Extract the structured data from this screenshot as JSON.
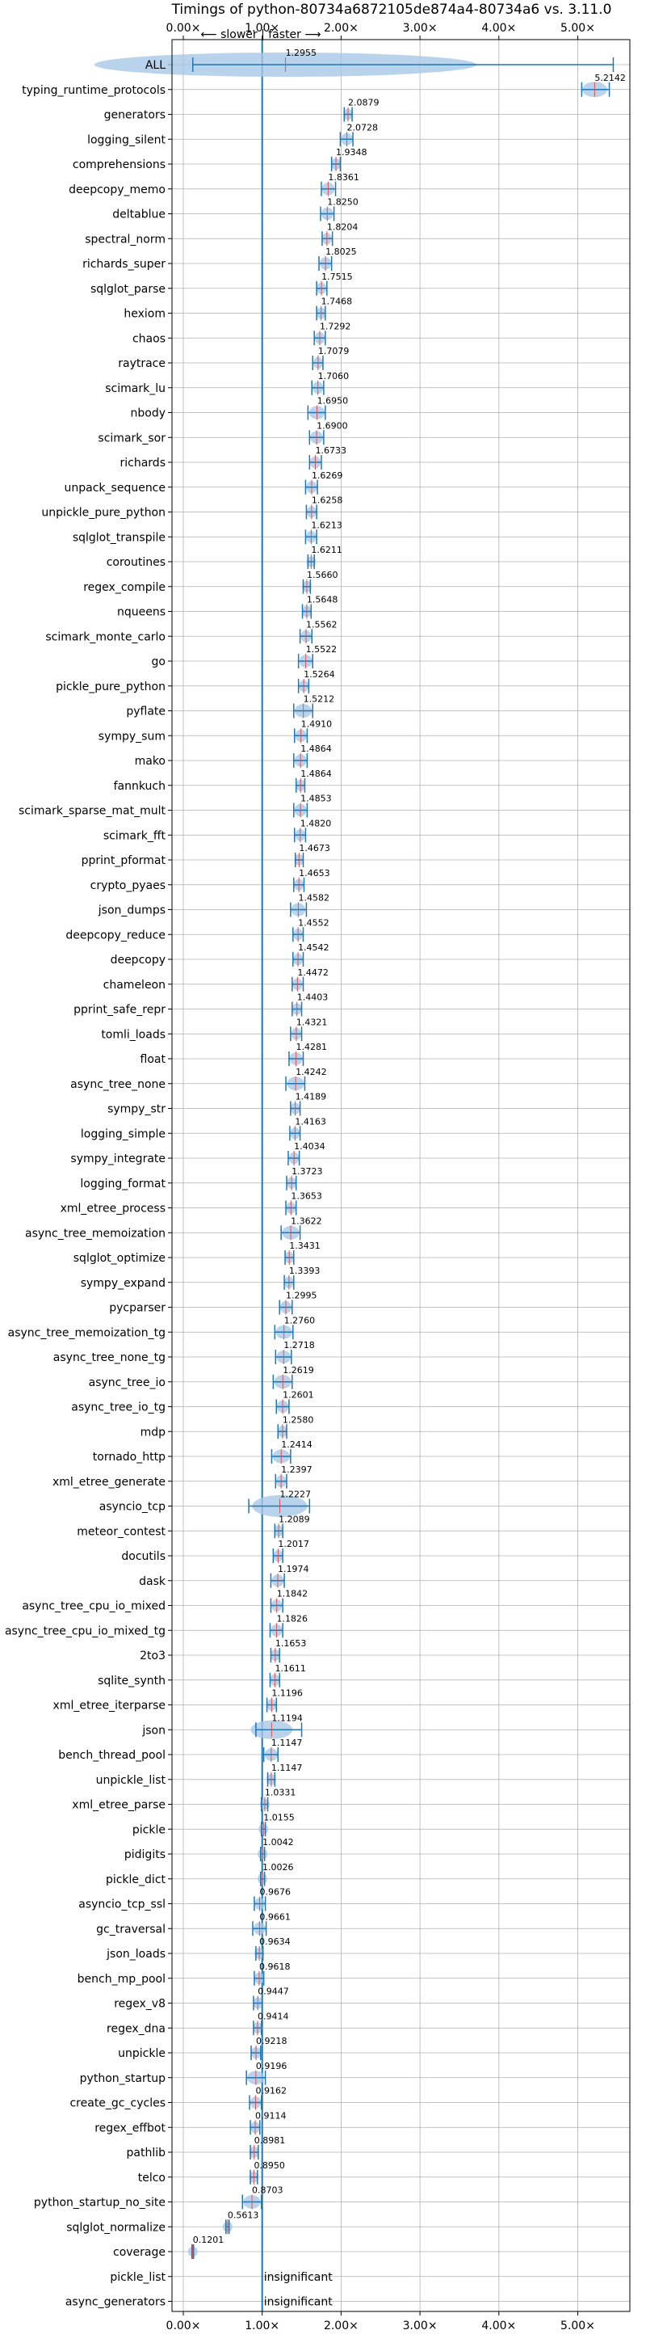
{
  "chart_data": {
    "type": "scatter",
    "title": "Timings of python-80734a6872105de874a4-80734a6 vs. 3.11.0",
    "direction_label": "⟵ slower | faster ⟶",
    "xlabel": "",
    "ylabel": "",
    "xlim": [
      0,
      5.5
    ],
    "x_ticks": [
      0,
      1,
      2,
      3,
      4,
      5
    ],
    "x_tick_labels": [
      "0.00×",
      "1.00×",
      "2.00×",
      "3.00×",
      "4.00×",
      "5.00×"
    ],
    "reference_line": 1.0,
    "grid": true,
    "benchmarks": [
      {
        "name": "ALL",
        "value": 1.2955,
        "label": "1.2955",
        "lo": 0.12,
        "hi": 5.45
      },
      {
        "name": "typing_runtime_protocols",
        "value": 5.2142,
        "label": "5.2142",
        "lo": 5.05,
        "hi": 5.4
      },
      {
        "name": "generators",
        "value": 2.0879,
        "label": "2.0879",
        "lo": 2.04,
        "hi": 2.14
      },
      {
        "name": "logging_silent",
        "value": 2.0728,
        "label": "2.0728",
        "lo": 1.99,
        "hi": 2.15
      },
      {
        "name": "comprehensions",
        "value": 1.9348,
        "label": "1.9348",
        "lo": 1.88,
        "hi": 1.99
      },
      {
        "name": "deepcopy_memo",
        "value": 1.8361,
        "label": "1.8361",
        "lo": 1.75,
        "hi": 1.93
      },
      {
        "name": "deltablue",
        "value": 1.825,
        "label": "1.8250",
        "lo": 1.74,
        "hi": 1.91
      },
      {
        "name": "spectral_norm",
        "value": 1.8204,
        "label": "1.8204",
        "lo": 1.76,
        "hi": 1.89
      },
      {
        "name": "richards_super",
        "value": 1.8025,
        "label": "1.8025",
        "lo": 1.72,
        "hi": 1.88
      },
      {
        "name": "sqlglot_parse",
        "value": 1.7515,
        "label": "1.7515",
        "lo": 1.69,
        "hi": 1.82
      },
      {
        "name": "hexiom",
        "value": 1.7468,
        "label": "1.7468",
        "lo": 1.69,
        "hi": 1.8
      },
      {
        "name": "chaos",
        "value": 1.7292,
        "label": "1.7292",
        "lo": 1.66,
        "hi": 1.8
      },
      {
        "name": "raytrace",
        "value": 1.7079,
        "label": "1.7079",
        "lo": 1.64,
        "hi": 1.77
      },
      {
        "name": "scimark_lu",
        "value": 1.706,
        "label": "1.7060",
        "lo": 1.63,
        "hi": 1.78
      },
      {
        "name": "nbody",
        "value": 1.695,
        "label": "1.6950",
        "lo": 1.58,
        "hi": 1.8
      },
      {
        "name": "scimark_sor",
        "value": 1.69,
        "label": "1.6900",
        "lo": 1.6,
        "hi": 1.78
      },
      {
        "name": "richards",
        "value": 1.6733,
        "label": "1.6733",
        "lo": 1.6,
        "hi": 1.75
      },
      {
        "name": "unpack_sequence",
        "value": 1.6269,
        "label": "1.6269",
        "lo": 1.55,
        "hi": 1.7
      },
      {
        "name": "unpickle_pure_python",
        "value": 1.6258,
        "label": "1.6258",
        "lo": 1.56,
        "hi": 1.69
      },
      {
        "name": "sqlglot_transpile",
        "value": 1.6213,
        "label": "1.6213",
        "lo": 1.55,
        "hi": 1.69
      },
      {
        "name": "coroutines",
        "value": 1.6211,
        "label": "1.6211",
        "lo": 1.58,
        "hi": 1.66
      },
      {
        "name": "regex_compile",
        "value": 1.566,
        "label": "1.5660",
        "lo": 1.52,
        "hi": 1.61
      },
      {
        "name": "nqueens",
        "value": 1.5648,
        "label": "1.5648",
        "lo": 1.51,
        "hi": 1.62
      },
      {
        "name": "scimark_monte_carlo",
        "value": 1.5562,
        "label": "1.5562",
        "lo": 1.48,
        "hi": 1.63
      },
      {
        "name": "go",
        "value": 1.5522,
        "label": "1.5522",
        "lo": 1.46,
        "hi": 1.64
      },
      {
        "name": "pickle_pure_python",
        "value": 1.5264,
        "label": "1.5264",
        "lo": 1.46,
        "hi": 1.59
      },
      {
        "name": "pyflate",
        "value": 1.5212,
        "label": "1.5212",
        "lo": 1.4,
        "hi": 1.64
      },
      {
        "name": "sympy_sum",
        "value": 1.491,
        "label": "1.4910",
        "lo": 1.41,
        "hi": 1.57
      },
      {
        "name": "mako",
        "value": 1.4864,
        "label": "1.4864",
        "lo": 1.4,
        "hi": 1.57
      },
      {
        "name": "fannkuch",
        "value": 1.4864,
        "label": "1.4864",
        "lo": 1.43,
        "hi": 1.54
      },
      {
        "name": "scimark_sparse_mat_mult",
        "value": 1.4853,
        "label": "1.4853",
        "lo": 1.4,
        "hi": 1.57
      },
      {
        "name": "scimark_fft",
        "value": 1.482,
        "label": "1.4820",
        "lo": 1.41,
        "hi": 1.55
      },
      {
        "name": "pprint_pformat",
        "value": 1.4673,
        "label": "1.4673",
        "lo": 1.42,
        "hi": 1.52
      },
      {
        "name": "crypto_pyaes",
        "value": 1.4653,
        "label": "1.4653",
        "lo": 1.4,
        "hi": 1.53
      },
      {
        "name": "json_dumps",
        "value": 1.4582,
        "label": "1.4582",
        "lo": 1.36,
        "hi": 1.56
      },
      {
        "name": "deepcopy_reduce",
        "value": 1.4552,
        "label": "1.4552",
        "lo": 1.39,
        "hi": 1.52
      },
      {
        "name": "deepcopy",
        "value": 1.4542,
        "label": "1.4542",
        "lo": 1.39,
        "hi": 1.52
      },
      {
        "name": "chameleon",
        "value": 1.4472,
        "label": "1.4472",
        "lo": 1.38,
        "hi": 1.52
      },
      {
        "name": "pprint_safe_repr",
        "value": 1.4403,
        "label": "1.4403",
        "lo": 1.38,
        "hi": 1.5
      },
      {
        "name": "tomli_loads",
        "value": 1.4321,
        "label": "1.4321",
        "lo": 1.36,
        "hi": 1.5
      },
      {
        "name": "float",
        "value": 1.4281,
        "label": "1.4281",
        "lo": 1.34,
        "hi": 1.52
      },
      {
        "name": "async_tree_none",
        "value": 1.4242,
        "label": "1.4242",
        "lo": 1.3,
        "hi": 1.54
      },
      {
        "name": "sympy_str",
        "value": 1.4189,
        "label": "1.4189",
        "lo": 1.36,
        "hi": 1.48
      },
      {
        "name": "logging_simple",
        "value": 1.4163,
        "label": "1.4163",
        "lo": 1.35,
        "hi": 1.48
      },
      {
        "name": "sympy_integrate",
        "value": 1.4034,
        "label": "1.4034",
        "lo": 1.33,
        "hi": 1.47
      },
      {
        "name": "logging_format",
        "value": 1.3723,
        "label": "1.3723",
        "lo": 1.31,
        "hi": 1.43
      },
      {
        "name": "xml_etree_process",
        "value": 1.3653,
        "label": "1.3653",
        "lo": 1.3,
        "hi": 1.43
      },
      {
        "name": "async_tree_memoization",
        "value": 1.3622,
        "label": "1.3622",
        "lo": 1.24,
        "hi": 1.48
      },
      {
        "name": "sqlglot_optimize",
        "value": 1.3431,
        "label": "1.3431",
        "lo": 1.29,
        "hi": 1.4
      },
      {
        "name": "sympy_expand",
        "value": 1.3393,
        "label": "1.3393",
        "lo": 1.28,
        "hi": 1.4
      },
      {
        "name": "pycparser",
        "value": 1.2995,
        "label": "1.2995",
        "lo": 1.22,
        "hi": 1.38
      },
      {
        "name": "async_tree_memoization_tg",
        "value": 1.276,
        "label": "1.2760",
        "lo": 1.16,
        "hi": 1.39
      },
      {
        "name": "async_tree_none_tg",
        "value": 1.2718,
        "label": "1.2718",
        "lo": 1.17,
        "hi": 1.37
      },
      {
        "name": "async_tree_io",
        "value": 1.2619,
        "label": "1.2619",
        "lo": 1.14,
        "hi": 1.38
      },
      {
        "name": "async_tree_io_tg",
        "value": 1.2601,
        "label": "1.2601",
        "lo": 1.18,
        "hi": 1.34
      },
      {
        "name": "mdp",
        "value": 1.258,
        "label": "1.2580",
        "lo": 1.2,
        "hi": 1.31
      },
      {
        "name": "tornado_http",
        "value": 1.2414,
        "label": "1.2414",
        "lo": 1.12,
        "hi": 1.36
      },
      {
        "name": "xml_etree_generate",
        "value": 1.2397,
        "label": "1.2397",
        "lo": 1.17,
        "hi": 1.31
      },
      {
        "name": "asyncio_tcp",
        "value": 1.2227,
        "label": "1.2227",
        "lo": 0.83,
        "hi": 1.6
      },
      {
        "name": "meteor_contest",
        "value": 1.2089,
        "label": "1.2089",
        "lo": 1.16,
        "hi": 1.26
      },
      {
        "name": "docutils",
        "value": 1.2017,
        "label": "1.2017",
        "lo": 1.14,
        "hi": 1.26
      },
      {
        "name": "dask",
        "value": 1.1974,
        "label": "1.1974",
        "lo": 1.11,
        "hi": 1.28
      },
      {
        "name": "async_tree_cpu_io_mixed",
        "value": 1.1842,
        "label": "1.1842",
        "lo": 1.11,
        "hi": 1.26
      },
      {
        "name": "async_tree_cpu_io_mixed_tg",
        "value": 1.1826,
        "label": "1.1826",
        "lo": 1.1,
        "hi": 1.26
      },
      {
        "name": "2to3",
        "value": 1.1653,
        "label": "1.1653",
        "lo": 1.11,
        "hi": 1.22
      },
      {
        "name": "sqlite_synth",
        "value": 1.1611,
        "label": "1.1611",
        "lo": 1.1,
        "hi": 1.22
      },
      {
        "name": "xml_etree_iterparse",
        "value": 1.1196,
        "label": "1.1196",
        "lo": 1.06,
        "hi": 1.18
      },
      {
        "name": "json",
        "value": 1.1194,
        "label": "1.1194",
        "lo": 0.92,
        "hi": 1.5
      },
      {
        "name": "bench_thread_pool",
        "value": 1.1147,
        "label": "1.1147",
        "lo": 1.02,
        "hi": 1.2
      },
      {
        "name": "unpickle_list",
        "value": 1.1147,
        "label": "1.1147",
        "lo": 1.07,
        "hi": 1.16
      },
      {
        "name": "xml_etree_parse",
        "value": 1.0331,
        "label": "1.0331",
        "lo": 0.99,
        "hi": 1.07
      },
      {
        "name": "pickle",
        "value": 1.0155,
        "label": "1.0155",
        "lo": 0.99,
        "hi": 1.04
      },
      {
        "name": "pidigits",
        "value": 1.0042,
        "label": "1.0042",
        "lo": 0.98,
        "hi": 1.03
      },
      {
        "name": "pickle_dict",
        "value": 1.0026,
        "label": "1.0026",
        "lo": 0.98,
        "hi": 1.03
      },
      {
        "name": "asyncio_tcp_ssl",
        "value": 0.9676,
        "label": "0.9676",
        "lo": 0.9,
        "hi": 1.04
      },
      {
        "name": "gc_traversal",
        "value": 0.9661,
        "label": "0.9661",
        "lo": 0.88,
        "hi": 1.05
      },
      {
        "name": "json_loads",
        "value": 0.9634,
        "label": "0.9634",
        "lo": 0.92,
        "hi": 1.01
      },
      {
        "name": "bench_mp_pool",
        "value": 0.9618,
        "label": "0.9618",
        "lo": 0.9,
        "hi": 1.02
      },
      {
        "name": "regex_v8",
        "value": 0.9447,
        "label": "0.9447",
        "lo": 0.89,
        "hi": 1.0
      },
      {
        "name": "regex_dna",
        "value": 0.9414,
        "label": "0.9414",
        "lo": 0.89,
        "hi": 0.99
      },
      {
        "name": "unpickle",
        "value": 0.9218,
        "label": "0.9218",
        "lo": 0.86,
        "hi": 0.98
      },
      {
        "name": "python_startup",
        "value": 0.9196,
        "label": "0.9196",
        "lo": 0.8,
        "hi": 1.04
      },
      {
        "name": "create_gc_cycles",
        "value": 0.9162,
        "label": "0.9162",
        "lo": 0.84,
        "hi": 0.99
      },
      {
        "name": "regex_effbot",
        "value": 0.9114,
        "label": "0.9114",
        "lo": 0.85,
        "hi": 0.97
      },
      {
        "name": "pathlib",
        "value": 0.8981,
        "label": "0.8981",
        "lo": 0.85,
        "hi": 0.95
      },
      {
        "name": "telco",
        "value": 0.895,
        "label": "0.8950",
        "lo": 0.85,
        "hi": 0.94
      },
      {
        "name": "python_startup_no_site",
        "value": 0.8703,
        "label": "0.8703",
        "lo": 0.75,
        "hi": 0.99
      },
      {
        "name": "sqlglot_normalize",
        "value": 0.5613,
        "label": "0.5613",
        "lo": 0.54,
        "hi": 0.58
      },
      {
        "name": "coverage",
        "value": 0.1201,
        "label": "0.1201",
        "lo": 0.11,
        "hi": 0.13
      },
      {
        "name": "pickle_list",
        "value": null,
        "label": "insignificant"
      },
      {
        "name": "async_generators",
        "value": null,
        "label": "insignificant"
      }
    ]
  }
}
